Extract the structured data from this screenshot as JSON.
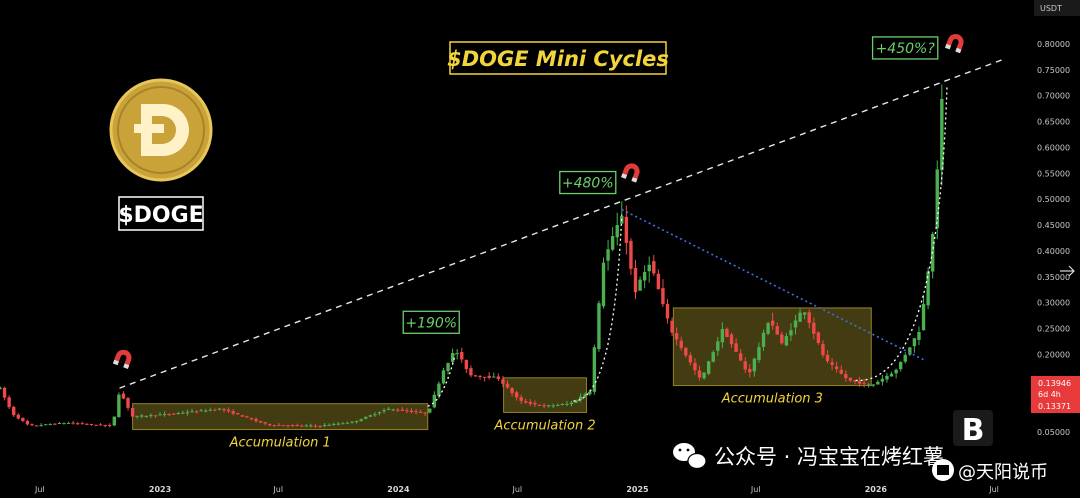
{
  "chart_data": {
    "type": "candlestick",
    "title": "$DOGE Mini Cycles",
    "ticker_label": "$DOGE",
    "y_unit": "USDT",
    "ylim": [
      0.0,
      0.85
    ],
    "y_ticks": [
      "0.80000",
      "0.75000",
      "0.70000",
      "0.65000",
      "0.60000",
      "0.55000",
      "0.50000",
      "0.45000",
      "0.40000",
      "0.35000",
      "0.30000",
      "0.25000",
      "0.20000",
      "0.15000",
      "0.10000",
      "0.05000"
    ],
    "y_tick_values": [
      0.8,
      0.75,
      0.7,
      0.65,
      0.6,
      0.55,
      0.5,
      0.45,
      0.4,
      0.35,
      0.3,
      0.25,
      0.2,
      0.15,
      0.1,
      0.05
    ],
    "x_ticks": [
      {
        "label": "Jul",
        "date": "2022-07-01",
        "year": false
      },
      {
        "label": "2023",
        "date": "2023-01-01",
        "year": true
      },
      {
        "label": "Jul",
        "date": "2023-07-01",
        "year": false
      },
      {
        "label": "2024",
        "date": "2024-01-01",
        "year": true
      },
      {
        "label": "Jul",
        "date": "2024-07-01",
        "year": false
      },
      {
        "label": "2025",
        "date": "2025-01-01",
        "year": true
      },
      {
        "label": "Jul",
        "date": "2025-07-01",
        "year": false
      },
      {
        "label": "2026",
        "date": "2026-01-01",
        "year": true
      },
      {
        "label": "Jul",
        "date": "2026-07-01",
        "year": false
      }
    ],
    "xlim": [
      "2022-05-01",
      "2026-08-25"
    ],
    "price_path": [
      [
        "2022-05-01",
        0.135
      ],
      [
        "2022-05-20",
        0.085
      ],
      [
        "2022-06-15",
        0.062
      ],
      [
        "2022-08-10",
        0.068
      ],
      [
        "2022-10-20",
        0.062
      ],
      [
        "2022-10-31",
        0.13
      ],
      [
        "2022-11-20",
        0.08
      ],
      [
        "2023-01-15",
        0.085
      ],
      [
        "2023-04-03",
        0.095
      ],
      [
        "2023-06-15",
        0.064
      ],
      [
        "2023-09-01",
        0.062
      ],
      [
        "2023-10-25",
        0.07
      ],
      [
        "2023-12-15",
        0.095
      ],
      [
        "2024-02-15",
        0.086
      ],
      [
        "2024-03-10",
        0.17
      ],
      [
        "2024-03-28",
        0.21
      ],
      [
        "2024-04-20",
        0.16
      ],
      [
        "2024-06-01",
        0.155
      ],
      [
        "2024-07-05",
        0.11
      ],
      [
        "2024-08-10",
        0.1
      ],
      [
        "2024-09-20",
        0.105
      ],
      [
        "2024-10-20",
        0.13
      ],
      [
        "2024-11-10",
        0.38
      ],
      [
        "2024-12-08",
        0.47
      ],
      [
        "2024-12-28",
        0.32
      ],
      [
        "2025-01-20",
        0.38
      ],
      [
        "2025-02-20",
        0.25
      ],
      [
        "2025-04-08",
        0.15
      ],
      [
        "2025-05-12",
        0.25
      ],
      [
        "2025-06-20",
        0.16
      ],
      [
        "2025-07-22",
        0.27
      ],
      [
        "2025-08-10",
        0.22
      ],
      [
        "2025-09-12",
        0.29
      ],
      [
        "2025-10-15",
        0.19
      ],
      [
        "2025-11-20",
        0.15
      ],
      [
        "2025-12-25",
        0.14
      ],
      [
        "2026-02-01",
        0.17
      ],
      [
        "2026-03-10",
        0.25
      ],
      [
        "2026-03-28",
        0.42
      ],
      [
        "2026-04-15",
        0.74
      ]
    ],
    "accumulation_zones": [
      {
        "label": "Accumulation 1",
        "start": "2022-11-20",
        "end": "2024-02-15",
        "low": 0.055,
        "high": 0.105
      },
      {
        "label": "Accumulation 2",
        "start": "2024-06-10",
        "end": "2024-10-15",
        "low": 0.088,
        "high": 0.155
      },
      {
        "label": "Accumulation 3",
        "start": "2025-02-25",
        "end": "2025-12-25",
        "low": 0.14,
        "high": 0.29
      }
    ],
    "gains": [
      {
        "label": "+190%",
        "date": "2024-03-28",
        "price": 0.21
      },
      {
        "label": "+480%",
        "date": "2024-12-08",
        "price": 0.48
      },
      {
        "label": "+450%?",
        "date": "2026-04-15",
        "price": 0.74
      }
    ],
    "trendline": {
      "from": {
        "date": "2022-10-31",
        "price": 0.135
      },
      "to": {
        "date": "2026-07-15",
        "price": 0.77
      }
    },
    "downtrend": {
      "from": {
        "date": "2024-12-08",
        "price": 0.48
      },
      "to": {
        "date": "2026-03-15",
        "price": 0.19
      }
    },
    "projection_color": "#ffffff",
    "colors": {
      "up": "#4caf50",
      "down": "#f04848",
      "zone": "#f2d43c",
      "downtrend": "#3f6fe0",
      "title": "#f2d43c",
      "gain": "#6ad06a",
      "doge_coin": "#c9a33a"
    },
    "current_price": {
      "price_label": "0.13946",
      "countdown": "6d 4h",
      "low_label": "0.13371"
    }
  },
  "watermark": {
    "brand": "公众号 · 冯宝宝在烤红薯",
    "brand_bottom": "@天阳说币",
    "logo_letter": "B"
  },
  "icons": {
    "magnet": "magnet-icon",
    "wechat": "wechat-icon",
    "doge_logo": "doge-coin-logo"
  }
}
